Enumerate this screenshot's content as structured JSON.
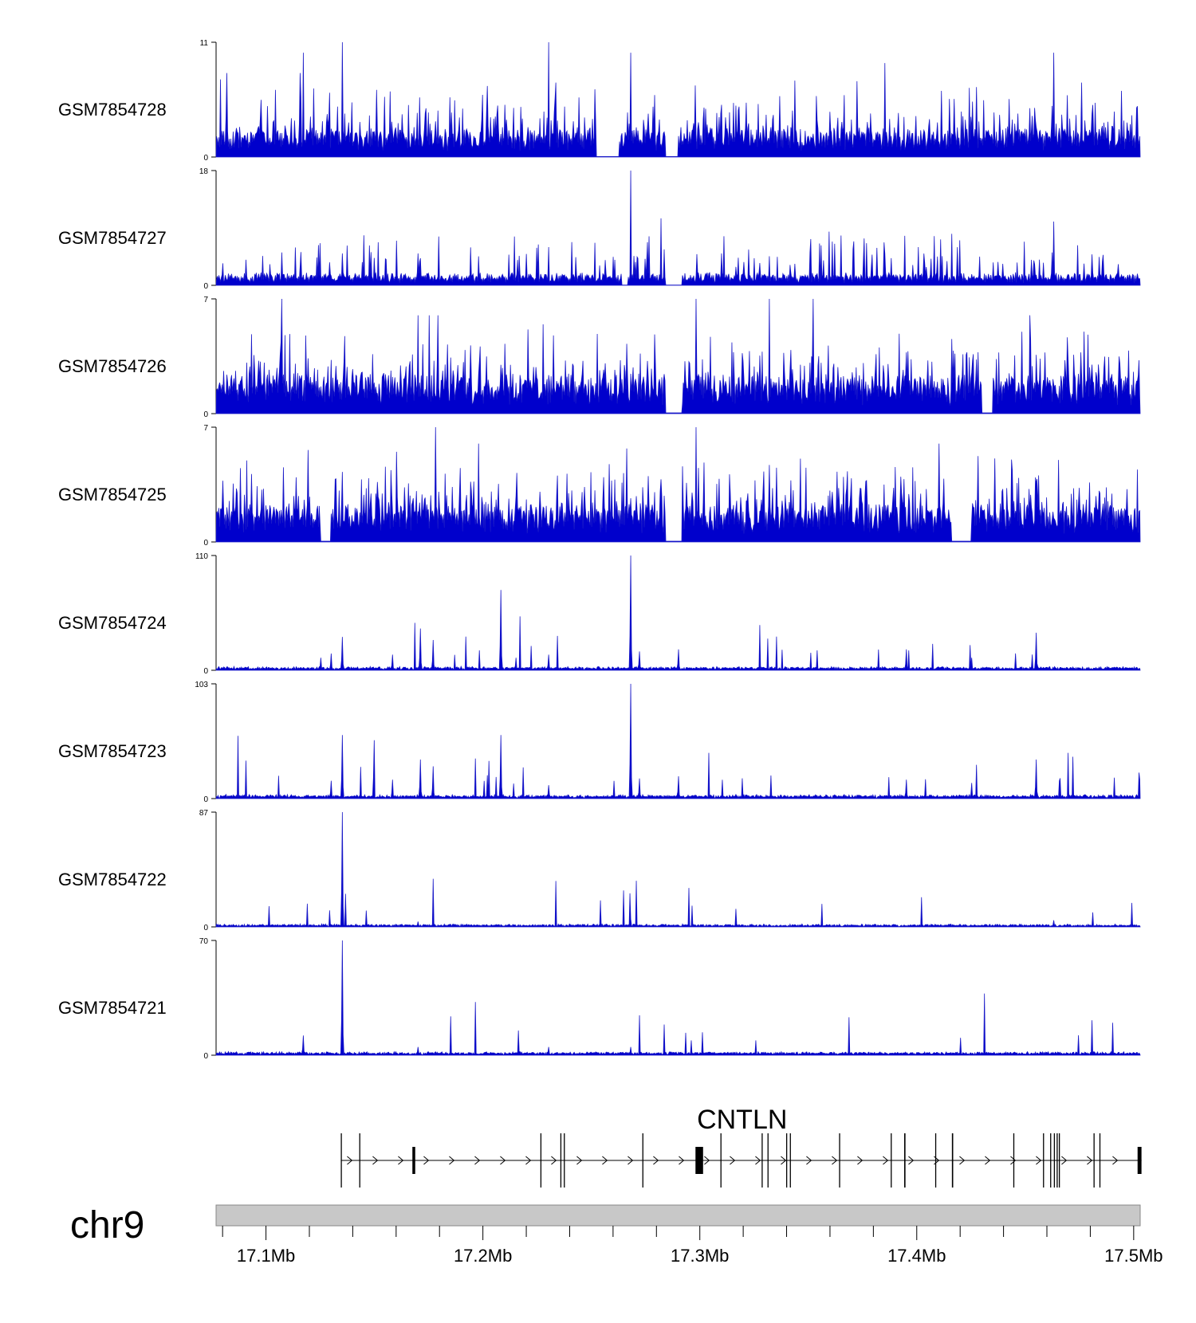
{
  "colors": {
    "signal": "#1a1ac8",
    "signal_fill": "#0000cc",
    "axis": "#000000",
    "ideogram": "#c8c8c8",
    "ideogram_border": "#888888",
    "gene": "#000000"
  },
  "chart_data": {
    "type": "area",
    "title": "",
    "chromosome": "chr9",
    "region": {
      "start_mb": 17.077,
      "end_mb": 17.503
    },
    "xlabel": "",
    "ylabel": "",
    "x_ticks_major": [
      {
        "value": 17.1,
        "label": "17.1Mb"
      },
      {
        "value": 17.2,
        "label": "17.2Mb"
      },
      {
        "value": 17.3,
        "label": "17.3Mb"
      },
      {
        "value": 17.4,
        "label": "17.4Mb"
      },
      {
        "value": 17.5,
        "label": "17.5Mb"
      }
    ],
    "x_ticks_minor": [
      17.08,
      17.12,
      17.14,
      17.16,
      17.18,
      17.22,
      17.24,
      17.26,
      17.28,
      17.32,
      17.34,
      17.36,
      17.38,
      17.42,
      17.44,
      17.46,
      17.48
    ],
    "tracks": [
      {
        "name": "GSM7854728",
        "ylim": [
          0,
          11
        ],
        "ymax_label": "11",
        "ymin_label": "0",
        "baseline": 1.8,
        "noise": 0.7,
        "spikiness": 0.18,
        "gaps": [
          17.252,
          17.263,
          17.284,
          17.29
        ],
        "peaks": [
          [
            17.135,
            11
          ],
          [
            17.117,
            10
          ],
          [
            17.23,
            11
          ],
          [
            17.268,
            10
          ],
          [
            17.385,
            9
          ],
          [
            17.463,
            10
          ],
          [
            17.31,
            5
          ],
          [
            17.21,
            5
          ]
        ]
      },
      {
        "name": "GSM7854727",
        "ylim": [
          0,
          18
        ],
        "ymax_label": "18",
        "ymin_label": "0",
        "baseline": 1.2,
        "noise": 0.5,
        "spikiness": 0.12,
        "gaps": [
          17.264,
          17.267,
          17.284,
          17.292
        ],
        "peaks": [
          [
            17.268,
            18
          ],
          [
            17.463,
            10
          ],
          [
            17.23,
            6
          ],
          [
            17.135,
            5
          ],
          [
            17.385,
            5
          ],
          [
            17.17,
            5
          ],
          [
            17.31,
            5
          ]
        ]
      },
      {
        "name": "GSM7854726",
        "ylim": [
          0,
          7
        ],
        "ymax_label": "7",
        "ymin_label": "0",
        "baseline": 1.5,
        "noise": 0.6,
        "spikiness": 0.2,
        "gaps": [
          17.284,
          17.292,
          17.43,
          17.435
        ],
        "peaks": [
          [
            17.107,
            7
          ],
          [
            17.332,
            7
          ],
          [
            17.352,
            7
          ],
          [
            17.17,
            6
          ],
          [
            17.179,
            6
          ],
          [
            17.298,
            7
          ],
          [
            17.452,
            6
          ],
          [
            17.175,
            6
          ]
        ]
      },
      {
        "name": "GSM7854725",
        "ylim": [
          0,
          7
        ],
        "ymax_label": "7",
        "ymin_label": "0",
        "baseline": 1.5,
        "noise": 0.6,
        "spikiness": 0.2,
        "gaps": [
          17.284,
          17.292,
          17.416,
          17.425,
          17.125,
          17.13
        ],
        "peaks": [
          [
            17.178,
            7
          ],
          [
            17.298,
            7
          ],
          [
            17.16,
            5.5
          ],
          [
            17.198,
            6
          ],
          [
            17.41,
            6
          ],
          [
            17.088,
            4.5
          ],
          [
            17.465,
            5
          ]
        ]
      },
      {
        "name": "GSM7854724",
        "ylim": [
          0,
          110
        ],
        "ymax_label": "110",
        "ymin_label": "0",
        "baseline": 2.0,
        "noise": 1.5,
        "spikiness": 0.02,
        "gaps": [],
        "peaks": [
          [
            17.268,
            110
          ],
          [
            17.208,
            77
          ],
          [
            17.135,
            32
          ],
          [
            17.171,
            40
          ],
          [
            17.177,
            29
          ],
          [
            17.455,
            36
          ],
          [
            17.29,
            20
          ],
          [
            17.395,
            20
          ],
          [
            17.272,
            18
          ],
          [
            17.13,
            16
          ],
          [
            17.125,
            12
          ],
          [
            17.158,
            15
          ],
          [
            17.23,
            15
          ],
          [
            17.215,
            12
          ],
          [
            17.425,
            12
          ]
        ]
      },
      {
        "name": "GSM7854723",
        "ylim": [
          0,
          103
        ],
        "ymax_label": "103",
        "ymin_label": "0",
        "baseline": 2.0,
        "noise": 1.5,
        "spikiness": 0.02,
        "gaps": [],
        "peaks": [
          [
            17.268,
            103
          ],
          [
            17.208,
            57
          ],
          [
            17.135,
            57
          ],
          [
            17.171,
            35
          ],
          [
            17.177,
            29
          ],
          [
            17.455,
            35
          ],
          [
            17.29,
            20
          ],
          [
            17.395,
            17
          ],
          [
            17.272,
            18
          ],
          [
            17.13,
            16
          ],
          [
            17.158,
            17
          ],
          [
            17.23,
            12
          ],
          [
            17.425,
            14
          ]
        ]
      },
      {
        "name": "GSM7854722",
        "ylim": [
          0,
          87
        ],
        "ymax_label": "87",
        "ymin_label": "0",
        "baseline": 1.2,
        "noise": 1.0,
        "spikiness": 0.01,
        "gaps": [],
        "peaks": [
          [
            17.135,
            87
          ],
          [
            17.268,
            6
          ],
          [
            17.463,
            5
          ],
          [
            17.17,
            4
          ]
        ]
      },
      {
        "name": "GSM7854721",
        "ylim": [
          0,
          70
        ],
        "ymax_label": "70",
        "ymin_label": "0",
        "baseline": 1.2,
        "noise": 1.0,
        "spikiness": 0.01,
        "gaps": [],
        "peaks": [
          [
            17.135,
            70
          ],
          [
            17.117,
            12
          ],
          [
            17.268,
            5
          ],
          [
            17.17,
            5
          ],
          [
            17.23,
            5
          ]
        ]
      }
    ],
    "gene": {
      "name": "CNTLN",
      "strand": "+",
      "start": 17.1345,
      "end": 17.5036,
      "exons": [
        [
          17.1345,
          17.1348
        ],
        [
          17.143,
          17.1433
        ],
        [
          17.1675,
          17.1688
        ],
        [
          17.2265,
          17.2268
        ],
        [
          17.2357,
          17.236
        ],
        [
          17.2373,
          17.2376
        ],
        [
          17.2735,
          17.2738
        ],
        [
          17.298,
          17.3015
        ],
        [
          17.3095,
          17.3098
        ],
        [
          17.3285,
          17.3288
        ],
        [
          17.3312,
          17.3315
        ],
        [
          17.3398,
          17.3401
        ],
        [
          17.3415,
          17.3418
        ],
        [
          17.3642,
          17.3645
        ],
        [
          17.388,
          17.3883
        ],
        [
          17.3942,
          17.3948
        ],
        [
          17.4085,
          17.4088
        ],
        [
          17.4162,
          17.4168
        ],
        [
          17.4445,
          17.4448
        ],
        [
          17.4582,
          17.4585
        ],
        [
          17.4615,
          17.4618
        ],
        [
          17.4632,
          17.4635
        ],
        [
          17.4645,
          17.4648
        ],
        [
          17.4655,
          17.4658
        ],
        [
          17.4815,
          17.4818
        ],
        [
          17.4842,
          17.4845
        ],
        [
          17.5018,
          17.5036
        ]
      ]
    }
  }
}
